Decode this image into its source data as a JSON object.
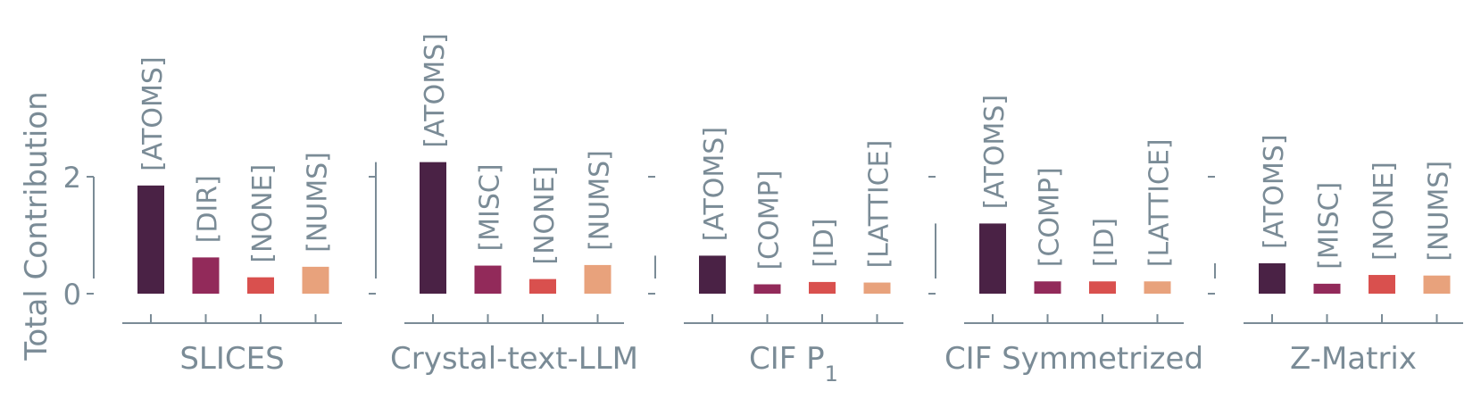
{
  "chart_data": {
    "type": "bar",
    "ylabel": "Total Contribution",
    "yticks": [
      0,
      2
    ],
    "colors": {
      "ATOMS": "#4a2245",
      "SECOND": "#922a5a",
      "THIRD": "#d9504e",
      "FOURTH": "#e8a27c"
    },
    "panels": [
      {
        "title": "SLICES",
        "title_sub": "",
        "ylim": [
          0,
          2.0
        ],
        "bars": [
          {
            "label": "[ATOMS]",
            "value": 1.85
          },
          {
            "label": "[DIR]",
            "value": 0.62
          },
          {
            "label": "[NONE]",
            "value": 0.28
          },
          {
            "label": "[NUMS]",
            "value": 0.46
          }
        ]
      },
      {
        "title": "Crystal-text-LLM",
        "title_sub": "",
        "ylim": [
          0,
          2.25
        ],
        "bars": [
          {
            "label": "[ATOMS]",
            "value": 2.25
          },
          {
            "label": "[MISC]",
            "value": 0.48
          },
          {
            "label": "[NONE]",
            "value": 0.25
          },
          {
            "label": "[NUMS]",
            "value": 0.49
          }
        ]
      },
      {
        "title": "CIF P",
        "title_sub": "1",
        "ylim": [
          0,
          0.65
        ],
        "bars": [
          {
            "label": "[ATOMS]",
            "value": 0.65
          },
          {
            "label": "[COMP]",
            "value": 0.16
          },
          {
            "label": "[ID]",
            "value": 0.2
          },
          {
            "label": "[LATTICE]",
            "value": 0.19
          }
        ]
      },
      {
        "title": "CIF Symmetrized",
        "title_sub": "",
        "ylim": [
          0,
          1.2
        ],
        "bars": [
          {
            "label": "[ATOMS]",
            "value": 1.2
          },
          {
            "label": "[COMP]",
            "value": 0.21
          },
          {
            "label": "[ID]",
            "value": 0.21
          },
          {
            "label": "[LATTICE]",
            "value": 0.21
          }
        ]
      },
      {
        "title": "Z-Matrix",
        "title_sub": "",
        "ylim": [
          0,
          0.52
        ],
        "bars": [
          {
            "label": "[ATOMS]",
            "value": 0.52
          },
          {
            "label": "[MISC]",
            "value": 0.17
          },
          {
            "label": "[NONE]",
            "value": 0.32
          },
          {
            "label": "[NUMS]",
            "value": 0.31
          }
        ]
      }
    ]
  }
}
